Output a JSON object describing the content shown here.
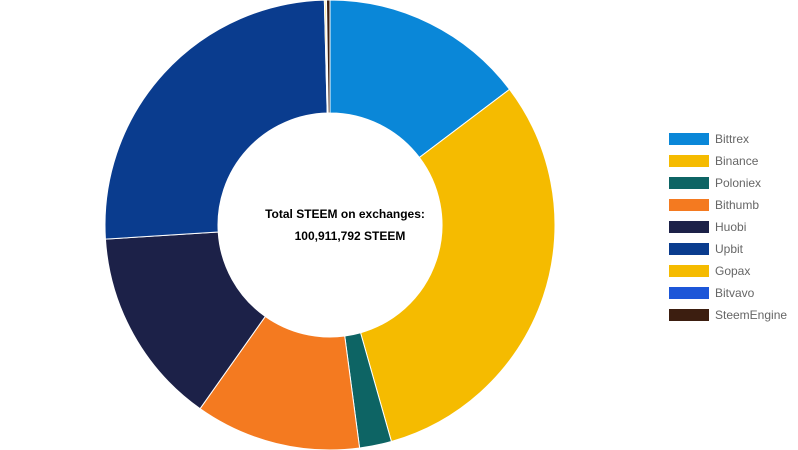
{
  "chart_data": {
    "type": "pie",
    "title": "",
    "center_label": "Total STEEM on exchanges:",
    "center_value": "100,911,792 STEEM",
    "legend_position": "right",
    "categories": [
      "Bittrex",
      "Binance",
      "Poloniex",
      "Bithumb",
      "Huobi",
      "Upbit",
      "Gopax",
      "Bitvavo",
      "SteemEngine"
    ],
    "values": [
      14.7,
      30.9,
      2.3,
      11.9,
      14.2,
      25.6,
      0.1,
      0.05,
      0.25
    ],
    "colors": [
      "#0a87d8",
      "#f5bb00",
      "#0d6464",
      "#f47a20",
      "#1c2148",
      "#0a3c8e",
      "#f5bb00",
      "#1c56d8",
      "#3c1e10"
    ]
  }
}
